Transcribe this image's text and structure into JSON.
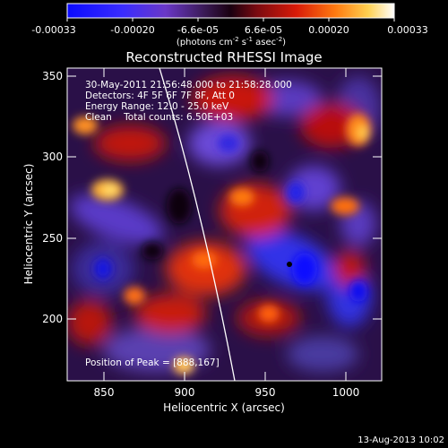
{
  "colorbar": {
    "tick_labels": [
      "-0.00033",
      "-0.00020",
      "-6.6e-05",
      "6.6e-05",
      "0.00020",
      "0.00033"
    ],
    "units_main": "(photons cm",
    "units_exp1": "-2",
    "units_mid": " s",
    "units_exp2": "-1",
    "units_end": " asec",
    "units_exp3": "-2",
    "units_close": ")"
  },
  "title": "Reconstructed RHESSI Image",
  "info": {
    "line1": "30-May-2011 21:56:48.000 to 21:58:28.000",
    "line2": "Detectors: 4F 5F 6F 7F 8F, Att 0",
    "line3": "Energy Range: 12.0 - 25.0 keV",
    "line4": "Clean    Total counts: 6.50E+03"
  },
  "peak_label": "Position of Peak = [888,167]",
  "axes": {
    "xlabel": "Heliocentric X (arcsec)",
    "ylabel": "Heliocentric Y (arcsec)",
    "x_ticks": [
      "850",
      "900",
      "950",
      "1000"
    ],
    "y_ticks": [
      "350",
      "300",
      "250",
      "200"
    ],
    "xlim": [
      828,
      1018
    ],
    "ylim": [
      160,
      358
    ]
  },
  "timestamp": "13-Aug-2013 10:02",
  "colors": {
    "background": "#000000",
    "colormap_low": "#1a1aff",
    "colormap_mid": "#200014",
    "colormap_high": "#ffffff"
  }
}
